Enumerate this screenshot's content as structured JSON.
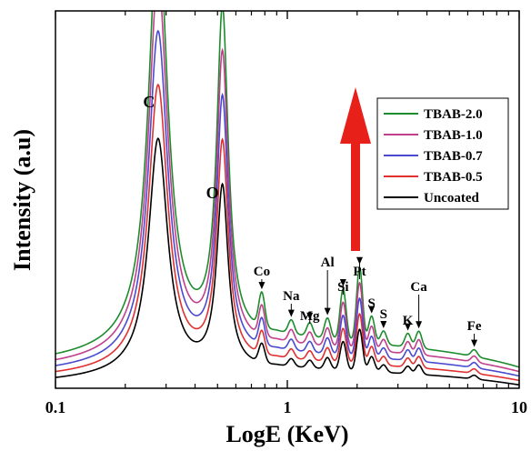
{
  "chart_data": {
    "type": "line",
    "xscale": "log",
    "xlabel": "LogE (KeV)",
    "ylabel": "Intensity (a.u)",
    "xlim": [
      0.1,
      10
    ],
    "ylim": [
      0,
      100
    ],
    "ytick_labels": false,
    "x_ticks": [
      {
        "value": 0.1,
        "label": "0.1"
      },
      {
        "value": 1,
        "label": "1"
      },
      {
        "value": 10,
        "label": "10"
      }
    ],
    "legend_position": "top-right",
    "series": [
      {
        "name": "TBAB-2.0",
        "color": "#1e8c2e",
        "offset": 4.0,
        "scale": 1.8
      },
      {
        "name": "TBAB-1.0",
        "color": "#c0408c",
        "offset": 3.0,
        "scale": 1.6
      },
      {
        "name": "TBAB-0.7",
        "color": "#4a4ad0",
        "offset": 2.0,
        "scale": 1.4
      },
      {
        "name": "TBAB-0.5",
        "color": "#e03030",
        "offset": 1.0,
        "scale": 1.2
      },
      {
        "name": "Uncoated",
        "color": "#000000",
        "offset": 0.0,
        "scale": 1.0
      }
    ],
    "peaks": [
      {
        "label": "C",
        "x": 0.277,
        "height": 62,
        "width": 0.05
      },
      {
        "label": "O",
        "x": 0.525,
        "height": 48,
        "width": 0.03
      }
    ],
    "minor_peaks": [
      {
        "label": "Co",
        "x": 0.776,
        "height": 5.0
      },
      {
        "label": "Na",
        "x": 1.04,
        "height": 2.0
      },
      {
        "label": "Mg",
        "x": 1.25,
        "height": 2.0
      },
      {
        "label": "Al",
        "x": 1.49,
        "height": 3.0
      },
      {
        "label": "Si",
        "x": 1.74,
        "height": 7.5
      },
      {
        "label": "Pt",
        "x": 2.05,
        "height": 11.0
      },
      {
        "label": "S",
        "x": 2.31,
        "height": 4.0
      },
      {
        "label": "S",
        "x": 2.6,
        "height": 2.0
      },
      {
        "label": "K",
        "x": 3.31,
        "height": 2.0
      },
      {
        "label": "Ca",
        "x": 3.69,
        "height": 2.5
      },
      {
        "label": "Fe",
        "x": 6.4,
        "height": 1.0
      }
    ],
    "arrow_color": "#e8201a"
  }
}
